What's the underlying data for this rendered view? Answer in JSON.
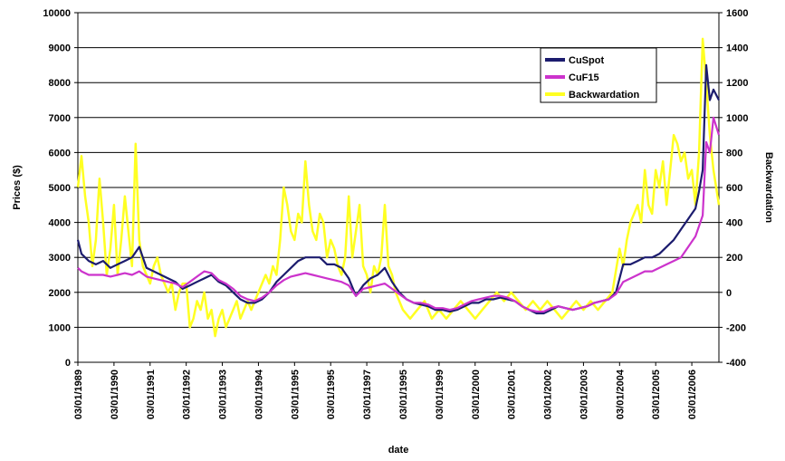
{
  "chart_data": {
    "type": "line",
    "xlabel": "date",
    "ylabel_left": "Prices ($)",
    "ylabel_right": "Backwardation",
    "y_left_lim": [
      0,
      10000
    ],
    "y_left_ticks": [
      "0",
      "1000",
      "2000",
      "3000",
      "4000",
      "5000",
      "6000",
      "7000",
      "8000",
      "9000",
      "10000"
    ],
    "y_right_lim": [
      -400,
      1600
    ],
    "y_right_ticks": [
      "-400",
      "-200",
      "0",
      "200",
      "400",
      "600",
      "800",
      "1000",
      "1200",
      "1400",
      "1600"
    ],
    "x_range": [
      1989.0,
      2006.75
    ],
    "x_tick_labels": [
      "03/01/1989",
      "03/01/1990",
      "03/01/1991",
      "03/01/1992",
      "03/01/1993",
      "03/01/1994",
      "03/01/1995",
      "03/01/1995",
      "03/01/1997",
      "03/01/1995",
      "03/01/1999",
      "03/01/2000",
      "03/01/2001",
      "03/01/2002",
      "03/01/2003",
      "03/01/2004",
      "03/01/2005",
      "03/01/2006"
    ],
    "grid": "horizontal",
    "legend_position": "top-right",
    "series": [
      {
        "name": "CuSpot",
        "color": "#1c1c6e",
        "axis": "left",
        "x": [
          1989.0,
          1989.1,
          1989.3,
          1989.5,
          1989.7,
          1989.9,
          1990.1,
          1990.3,
          1990.5,
          1990.7,
          1990.9,
          1991.1,
          1991.3,
          1991.5,
          1991.7,
          1991.9,
          1992.1,
          1992.3,
          1992.5,
          1992.7,
          1992.9,
          1993.1,
          1993.3,
          1993.5,
          1993.7,
          1993.9,
          1994.1,
          1994.3,
          1994.5,
          1994.7,
          1994.9,
          1995.1,
          1995.3,
          1995.5,
          1995.7,
          1995.9,
          1996.1,
          1996.3,
          1996.5,
          1996.7,
          1996.9,
          1997.1,
          1997.3,
          1997.5,
          1997.7,
          1997.9,
          1998.1,
          1998.3,
          1998.5,
          1998.7,
          1998.9,
          1999.1,
          1999.3,
          1999.5,
          1999.7,
          1999.9,
          2000.1,
          2000.3,
          2000.5,
          2000.7,
          2000.9,
          2001.1,
          2001.3,
          2001.5,
          2001.7,
          2001.9,
          2002.1,
          2002.3,
          2002.5,
          2002.7,
          2002.9,
          2003.1,
          2003.3,
          2003.5,
          2003.7,
          2003.9,
          2004.1,
          2004.3,
          2004.5,
          2004.7,
          2004.9,
          2005.1,
          2005.3,
          2005.5,
          2005.7,
          2005.9,
          2006.1,
          2006.2,
          2006.3,
          2006.4,
          2006.5,
          2006.6,
          2006.75
        ],
        "values": [
          3500,
          3100,
          2900,
          2800,
          2900,
          2700,
          2800,
          2900,
          3000,
          3300,
          2700,
          2600,
          2500,
          2400,
          2300,
          2100,
          2200,
          2300,
          2400,
          2500,
          2300,
          2200,
          2000,
          1800,
          1700,
          1700,
          1800,
          2000,
          2300,
          2500,
          2700,
          2900,
          3000,
          3000,
          3000,
          2800,
          2800,
          2700,
          2400,
          1900,
          2200,
          2400,
          2500,
          2700,
          2300,
          2000,
          1800,
          1700,
          1650,
          1600,
          1500,
          1500,
          1450,
          1500,
          1600,
          1700,
          1700,
          1800,
          1800,
          1850,
          1800,
          1750,
          1600,
          1500,
          1400,
          1400,
          1500,
          1600,
          1550,
          1500,
          1550,
          1600,
          1700,
          1750,
          1800,
          2000,
          2800,
          2800,
          2900,
          3000,
          3000,
          3100,
          3300,
          3500,
          3800,
          4100,
          4400,
          4900,
          5500,
          8500,
          7500,
          7800,
          7500
        ]
      },
      {
        "name": "CuF15",
        "color": "#cc33cc",
        "axis": "left",
        "x": [
          1989.0,
          1989.1,
          1989.3,
          1989.5,
          1989.7,
          1989.9,
          1990.1,
          1990.3,
          1990.5,
          1990.7,
          1990.9,
          1991.1,
          1991.3,
          1991.5,
          1991.7,
          1991.9,
          1992.1,
          1992.3,
          1992.5,
          1992.7,
          1992.9,
          1993.1,
          1993.3,
          1993.5,
          1993.7,
          1993.9,
          1994.1,
          1994.3,
          1994.5,
          1994.7,
          1994.9,
          1995.1,
          1995.3,
          1995.5,
          1995.7,
          1995.9,
          1996.1,
          1996.3,
          1996.5,
          1996.7,
          1996.9,
          1997.1,
          1997.3,
          1997.5,
          1997.7,
          1997.9,
          1998.1,
          1998.3,
          1998.5,
          1998.7,
          1998.9,
          1999.1,
          1999.3,
          1999.5,
          1999.7,
          1999.9,
          2000.1,
          2000.3,
          2000.5,
          2000.7,
          2000.9,
          2001.1,
          2001.3,
          2001.5,
          2001.7,
          2001.9,
          2002.1,
          2002.3,
          2002.5,
          2002.7,
          2002.9,
          2003.1,
          2003.3,
          2003.5,
          2003.7,
          2003.9,
          2004.1,
          2004.3,
          2004.5,
          2004.7,
          2004.9,
          2005.1,
          2005.3,
          2005.5,
          2005.7,
          2005.9,
          2006.1,
          2006.2,
          2006.3,
          2006.4,
          2006.5,
          2006.6,
          2006.75
        ],
        "values": [
          2700,
          2600,
          2500,
          2500,
          2500,
          2450,
          2500,
          2550,
          2500,
          2600,
          2450,
          2400,
          2350,
          2300,
          2250,
          2150,
          2300,
          2450,
          2600,
          2550,
          2350,
          2250,
          2100,
          1900,
          1800,
          1750,
          1850,
          2000,
          2200,
          2350,
          2450,
          2500,
          2550,
          2500,
          2450,
          2400,
          2350,
          2300,
          2200,
          1900,
          2100,
          2150,
          2200,
          2250,
          2100,
          1950,
          1800,
          1700,
          1700,
          1650,
          1550,
          1550,
          1500,
          1550,
          1650,
          1750,
          1800,
          1850,
          1900,
          1900,
          1850,
          1750,
          1600,
          1500,
          1450,
          1450,
          1550,
          1600,
          1550,
          1500,
          1550,
          1600,
          1700,
          1750,
          1800,
          1950,
          2300,
          2400,
          2500,
          2600,
          2600,
          2700,
          2800,
          2900,
          3000,
          3300,
          3600,
          3900,
          4200,
          6300,
          6000,
          7000,
          6500
        ]
      },
      {
        "name": "Backwardation",
        "color": "#ffff22",
        "axis": "right",
        "x": [
          1989.0,
          1989.1,
          1989.2,
          1989.3,
          1989.4,
          1989.5,
          1989.6,
          1989.7,
          1989.8,
          1989.9,
          1990.0,
          1990.1,
          1990.2,
          1990.3,
          1990.4,
          1990.5,
          1990.6,
          1990.7,
          1990.8,
          1990.9,
          1991.0,
          1991.1,
          1991.2,
          1991.3,
          1991.4,
          1991.5,
          1991.6,
          1991.7,
          1991.8,
          1991.9,
          1992.0,
          1992.1,
          1992.2,
          1992.3,
          1992.4,
          1992.5,
          1992.6,
          1992.7,
          1992.8,
          1992.9,
          1993.0,
          1993.1,
          1993.2,
          1993.3,
          1993.4,
          1993.5,
          1993.6,
          1993.7,
          1993.8,
          1993.9,
          1994.0,
          1994.1,
          1994.2,
          1994.3,
          1994.4,
          1994.5,
          1994.6,
          1994.7,
          1994.8,
          1994.9,
          1995.0,
          1995.1,
          1995.2,
          1995.3,
          1995.4,
          1995.5,
          1995.6,
          1995.7,
          1995.8,
          1995.9,
          1996.0,
          1996.1,
          1996.2,
          1996.3,
          1996.4,
          1996.5,
          1996.6,
          1996.7,
          1996.8,
          1996.9,
          1997.0,
          1997.1,
          1997.2,
          1997.3,
          1997.4,
          1997.5,
          1997.6,
          1997.7,
          1997.8,
          1997.9,
          1998.0,
          1998.2,
          1998.4,
          1998.6,
          1998.8,
          1999.0,
          1999.2,
          1999.4,
          1999.6,
          1999.8,
          2000.0,
          2000.2,
          2000.4,
          2000.6,
          2000.8,
          2001.0,
          2001.2,
          2001.4,
          2001.6,
          2001.8,
          2002.0,
          2002.2,
          2002.4,
          2002.6,
          2002.8,
          2003.0,
          2003.2,
          2003.4,
          2003.6,
          2003.8,
          2004.0,
          2004.1,
          2004.2,
          2004.3,
          2004.4,
          2004.5,
          2004.6,
          2004.7,
          2004.8,
          2004.9,
          2005.0,
          2005.1,
          2005.2,
          2005.3,
          2005.4,
          2005.5,
          2005.6,
          2005.7,
          2005.8,
          2005.9,
          2006.0,
          2006.1,
          2006.2,
          2006.3,
          2006.4,
          2006.5,
          2006.6,
          2006.75
        ],
        "values": [
          600,
          780,
          550,
          400,
          150,
          300,
          650,
          400,
          100,
          250,
          500,
          100,
          300,
          550,
          350,
          150,
          850,
          300,
          150,
          100,
          50,
          150,
          200,
          100,
          50,
          0,
          50,
          -100,
          0,
          50,
          50,
          -200,
          -150,
          -50,
          -100,
          0,
          -150,
          -100,
          -250,
          -150,
          -100,
          -200,
          -150,
          -100,
          -50,
          -150,
          -100,
          -50,
          -100,
          -50,
          0,
          50,
          100,
          50,
          150,
          100,
          300,
          600,
          500,
          350,
          300,
          450,
          400,
          750,
          500,
          350,
          300,
          450,
          400,
          200,
          300,
          250,
          150,
          100,
          200,
          550,
          200,
          350,
          500,
          150,
          100,
          0,
          150,
          100,
          200,
          500,
          150,
          100,
          0,
          -50,
          -100,
          -150,
          -100,
          -50,
          -150,
          -100,
          -150,
          -100,
          -50,
          -100,
          -150,
          -100,
          -50,
          0,
          -50,
          0,
          -50,
          -100,
          -50,
          -100,
          -50,
          -100,
          -150,
          -100,
          -50,
          -100,
          -50,
          -100,
          -50,
          0,
          250,
          150,
          300,
          400,
          450,
          500,
          400,
          700,
          500,
          450,
          700,
          600,
          750,
          500,
          700,
          900,
          850,
          750,
          800,
          650,
          700,
          500,
          800,
          1450,
          1200,
          900,
          700,
          500
        ]
      }
    ]
  }
}
